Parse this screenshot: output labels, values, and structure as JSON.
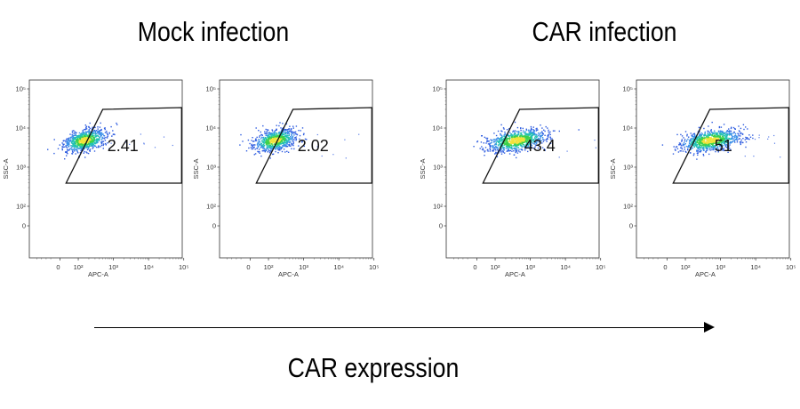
{
  "figure": {
    "group_titles": [
      "Mock infection",
      "CAR infection"
    ],
    "caption": "CAR expression"
  },
  "chart_data": [
    {
      "type": "scatter",
      "group": "Mock infection",
      "xlabel": "APC-A",
      "ylabel": "SSC-A",
      "xscale": "biexponential",
      "yscale": "biexponential",
      "x_ticks": [
        "0",
        "10²",
        "10³",
        "10⁴",
        "10⁵"
      ],
      "y_ticks": [
        "0",
        "10²",
        "10³",
        "10⁴",
        "10⁵"
      ],
      "gate_percent": "2.41",
      "population_center": {
        "APC-A": 150,
        "SSC-A": 5000
      }
    },
    {
      "type": "scatter",
      "group": "Mock infection",
      "xlabel": "APC-A",
      "ylabel": "SSC-A",
      "xscale": "biexponential",
      "yscale": "biexponential",
      "x_ticks": [
        "0",
        "10²",
        "10³",
        "10⁴",
        "10⁵"
      ],
      "y_ticks": [
        "0",
        "10²",
        "10³",
        "10⁴",
        "10⁵"
      ],
      "gate_percent": "2.02",
      "population_center": {
        "APC-A": 150,
        "SSC-A": 5000
      }
    },
    {
      "type": "scatter",
      "group": "CAR infection",
      "xlabel": "APC-A",
      "ylabel": "SSC-A",
      "xscale": "biexponential",
      "yscale": "biexponential",
      "x_ticks": [
        "0",
        "10²",
        "10³",
        "10⁴",
        "10⁵"
      ],
      "y_ticks": [
        "0",
        "10²",
        "10³",
        "10⁴",
        "10⁵"
      ],
      "gate_percent": "43.4",
      "population_center": {
        "APC-A": 400,
        "SSC-A": 5000
      }
    },
    {
      "type": "scatter",
      "group": "CAR infection",
      "xlabel": "APC-A",
      "ylabel": "SSC-A",
      "xscale": "biexponential",
      "yscale": "biexponential",
      "x_ticks": [
        "0",
        "10²",
        "10³",
        "10⁴",
        "10⁵"
      ],
      "y_ticks": [
        "0",
        "10²",
        "10³",
        "10⁴",
        "10⁵"
      ],
      "gate_percent": "51",
      "population_center": {
        "APC-A": 500,
        "SSC-A": 5000
      }
    }
  ]
}
